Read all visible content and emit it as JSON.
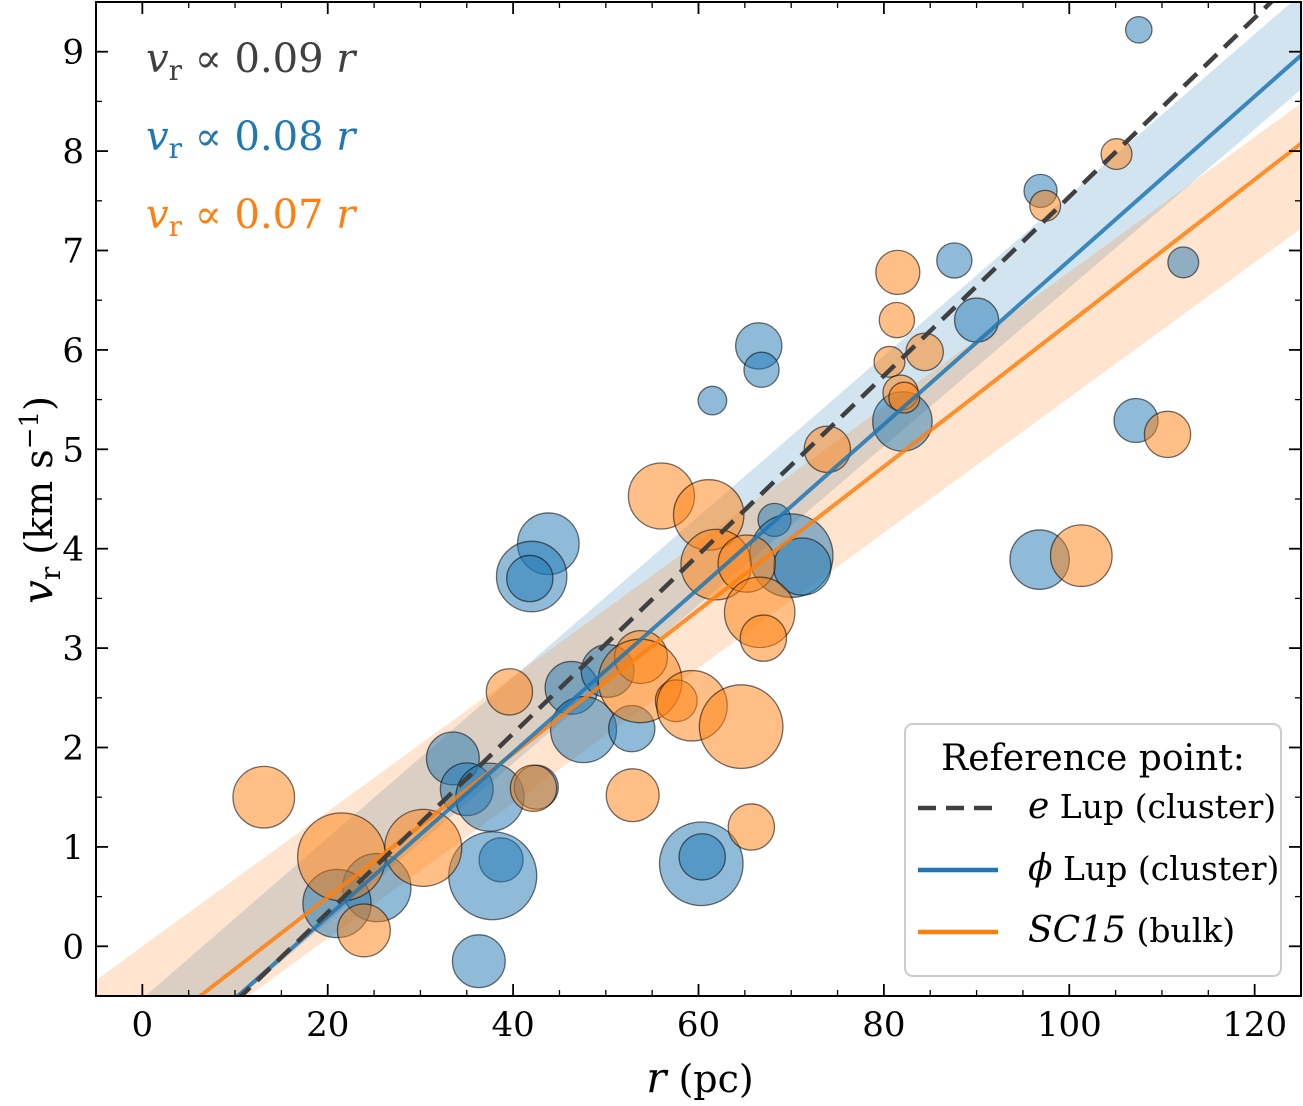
{
  "chart_data": {
    "type": "scatter",
    "xlabel": "r (pc)",
    "ylabel": "v_r (km s^-1)",
    "xlim": [
      -5,
      125
    ],
    "ylim": [
      -0.5,
      9.5
    ],
    "xticks": [
      0,
      20,
      40,
      60,
      80,
      100,
      120
    ],
    "yticks": [
      0,
      1,
      2,
      3,
      4,
      5,
      6,
      7,
      8,
      9
    ],
    "grid": false,
    "legend_placement": "bottom-right",
    "legend_title": "Reference point:",
    "colors": {
      "e_lup": "#404040",
      "phi_lup": "#1f77b4",
      "sc15": "#ff7f0e"
    },
    "annotations": [
      {
        "series": "e_lup",
        "text_prefix": "v",
        "subscript": "r",
        "text_suffix": " ∝ 0.09 ",
        "italic_tail": "r"
      },
      {
        "series": "phi_lup",
        "text_prefix": "v",
        "subscript": "r",
        "text_suffix": " ∝ 0.08 ",
        "italic_tail": "r"
      },
      {
        "series": "sc15",
        "text_prefix": "v",
        "subscript": "r",
        "text_suffix": " ∝ 0.07 ",
        "italic_tail": "r"
      }
    ],
    "fits": [
      {
        "id": "e_lup",
        "legend_symbol": "e",
        "legend_label": " Lup (cluster)",
        "style": "dashed",
        "slope": 0.09,
        "intercept": -1.46,
        "band": false
      },
      {
        "id": "phi_lup",
        "legend_symbol": "ϕ",
        "legend_label": " Lup (cluster)",
        "style": "solid",
        "slope": 0.0825,
        "intercept": -1.35,
        "band": true,
        "band_x": [
          -5,
          125
        ],
        "band_lower": [
          -1.75,
          8.62
        ],
        "band_upper": [
          -0.93,
          9.58
        ]
      },
      {
        "id": "sc15",
        "legend_symbol": "SC15",
        "legend_label": " (bulk)",
        "style": "solid",
        "slope": 0.0722,
        "intercept": -0.95,
        "band": true,
        "band_x": [
          -5,
          125
        ],
        "band_lower": [
          -1.62,
          7.22
        ],
        "band_upper": [
          -0.34,
          8.48
        ]
      }
    ],
    "series": [
      {
        "name": "ϕ Lup (cluster)",
        "color": "#1f77b4",
        "points": [
          {
            "x": 107.5,
            "y": 9.22,
            "s": 0.6
          },
          {
            "x": 112.3,
            "y": 6.88,
            "s": 0.7
          },
          {
            "x": 96.9,
            "y": 7.6,
            "s": 0.75
          },
          {
            "x": 87.6,
            "y": 6.9,
            "s": 0.8
          },
          {
            "x": 90.0,
            "y": 6.3,
            "s": 1.0
          },
          {
            "x": 66.5,
            "y": 6.04,
            "s": 1.05
          },
          {
            "x": 66.8,
            "y": 5.8,
            "s": 0.8
          },
          {
            "x": 61.5,
            "y": 5.49,
            "s": 0.65
          },
          {
            "x": 82.0,
            "y": 5.28,
            "s": 1.35
          },
          {
            "x": 107.2,
            "y": 5.29,
            "s": 1.0
          },
          {
            "x": 68.2,
            "y": 4.29,
            "s": 0.75
          },
          {
            "x": 70.0,
            "y": 3.93,
            "s": 1.9
          },
          {
            "x": 71.2,
            "y": 3.82,
            "s": 1.3
          },
          {
            "x": 96.8,
            "y": 3.89,
            "s": 1.35
          },
          {
            "x": 43.8,
            "y": 4.05,
            "s": 1.4
          },
          {
            "x": 42.0,
            "y": 3.72,
            "s": 1.6
          },
          {
            "x": 41.8,
            "y": 3.7,
            "s": 1.05
          },
          {
            "x": 46.3,
            "y": 2.6,
            "s": 1.2
          },
          {
            "x": 50.2,
            "y": 2.77,
            "s": 1.2
          },
          {
            "x": 47.6,
            "y": 2.18,
            "s": 1.5
          },
          {
            "x": 52.8,
            "y": 2.19,
            "s": 1.05
          },
          {
            "x": 33.5,
            "y": 1.89,
            "s": 1.2
          },
          {
            "x": 35.0,
            "y": 1.58,
            "s": 1.2
          },
          {
            "x": 37.5,
            "y": 1.5,
            "s": 1.55
          },
          {
            "x": 42.5,
            "y": 1.6,
            "s": 1.0
          },
          {
            "x": 38.7,
            "y": 0.87,
            "s": 1.0
          },
          {
            "x": 37.8,
            "y": 0.71,
            "s": 2.0
          },
          {
            "x": 60.3,
            "y": 0.83,
            "s": 1.9
          },
          {
            "x": 60.4,
            "y": 0.9,
            "s": 1.05
          },
          {
            "x": 25.3,
            "y": 0.59,
            "s": 1.55
          },
          {
            "x": 21.0,
            "y": 0.43,
            "s": 1.55
          },
          {
            "x": 36.3,
            "y": -0.15,
            "s": 1.2
          }
        ]
      },
      {
        "name": "SC15 (bulk)",
        "color": "#ff7f0e",
        "points": [
          {
            "x": 105.1,
            "y": 7.97,
            "s": 0.7
          },
          {
            "x": 97.4,
            "y": 7.45,
            "s": 0.7
          },
          {
            "x": 81.5,
            "y": 6.78,
            "s": 1.0
          },
          {
            "x": 81.4,
            "y": 6.3,
            "s": 0.8
          },
          {
            "x": 84.4,
            "y": 5.98,
            "s": 0.85
          },
          {
            "x": 80.6,
            "y": 5.88,
            "s": 0.7
          },
          {
            "x": 81.8,
            "y": 5.57,
            "s": 0.8
          },
          {
            "x": 82.2,
            "y": 5.52,
            "s": 0.7
          },
          {
            "x": 73.9,
            "y": 5.0,
            "s": 1.05
          },
          {
            "x": 110.6,
            "y": 5.15,
            "s": 1.05
          },
          {
            "x": 56.0,
            "y": 4.53,
            "s": 1.5
          },
          {
            "x": 61.1,
            "y": 4.34,
            "s": 1.6
          },
          {
            "x": 61.9,
            "y": 3.84,
            "s": 1.6
          },
          {
            "x": 65.2,
            "y": 3.85,
            "s": 1.3
          },
          {
            "x": 66.6,
            "y": 3.36,
            "s": 1.6
          },
          {
            "x": 67.0,
            "y": 3.1,
            "s": 1.05
          },
          {
            "x": 101.3,
            "y": 3.93,
            "s": 1.4
          },
          {
            "x": 53.8,
            "y": 2.91,
            "s": 1.2
          },
          {
            "x": 53.7,
            "y": 2.67,
            "s": 1.9
          },
          {
            "x": 57.6,
            "y": 2.47,
            "s": 0.95
          },
          {
            "x": 59.3,
            "y": 2.42,
            "s": 1.6
          },
          {
            "x": 64.6,
            "y": 2.21,
            "s": 1.9
          },
          {
            "x": 39.6,
            "y": 2.56,
            "s": 1.05
          },
          {
            "x": 42.2,
            "y": 1.59,
            "s": 1.05
          },
          {
            "x": 52.9,
            "y": 1.52,
            "s": 1.2
          },
          {
            "x": 65.7,
            "y": 1.2,
            "s": 1.05
          },
          {
            "x": 13.1,
            "y": 1.5,
            "s": 1.4
          },
          {
            "x": 30.3,
            "y": 0.99,
            "s": 1.75
          },
          {
            "x": 21.5,
            "y": 0.9,
            "s": 2.0
          },
          {
            "x": 23.9,
            "y": 0.16,
            "s": 1.2
          }
        ]
      }
    ]
  }
}
